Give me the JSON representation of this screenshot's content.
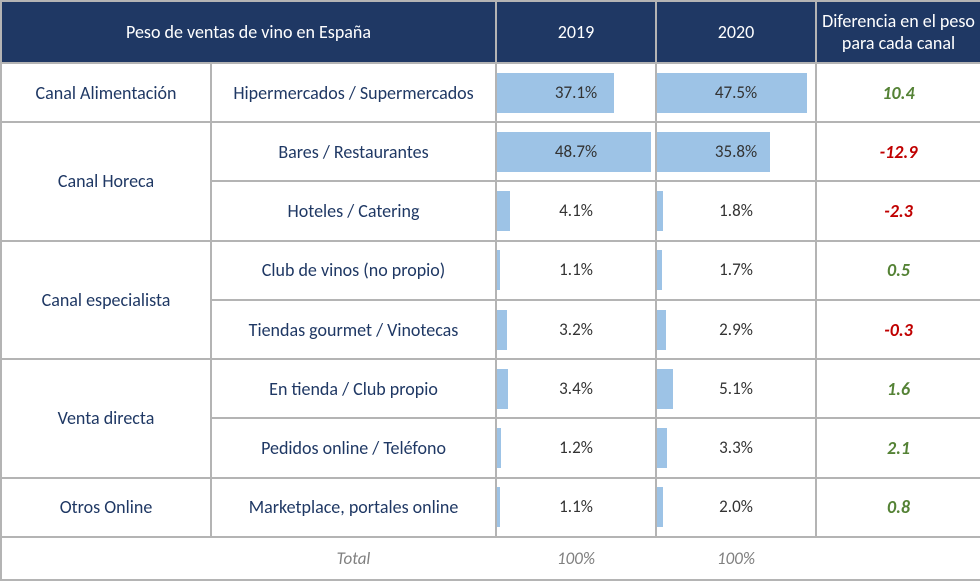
{
  "table": {
    "title": "Peso de ventas de vino en España",
    "header_bg": "#1f3864",
    "header_color": "#ffffff",
    "border_color": "#b4b4b4",
    "bar_color": "#9dc3e6",
    "text_blue": "#1f3864",
    "pos_color": "#548235",
    "neg_color": "#c00000",
    "columns": {
      "year1": "2019",
      "year2": "2020",
      "diff": "Diferencia en el peso para cada canal"
    },
    "bar_max": 50,
    "channels": [
      {
        "name": "Canal Alimentación",
        "subs": [
          {
            "label": "Hipermercados / Supermercados",
            "v2019": 37.1,
            "v2020": 47.5,
            "diff": 10.4
          }
        ]
      },
      {
        "name": "Canal Horeca",
        "subs": [
          {
            "label": "Bares / Restaurantes",
            "v2019": 48.7,
            "v2020": 35.8,
            "diff": -12.9
          },
          {
            "label": "Hoteles / Catering",
            "v2019": 4.1,
            "v2020": 1.8,
            "diff": -2.3
          }
        ]
      },
      {
        "name": "Canal especialista",
        "subs": [
          {
            "label": "Club de vinos (no propio)",
            "v2019": 1.1,
            "v2020": 1.7,
            "diff": 0.5
          },
          {
            "label": "Tiendas gourmet / Vinotecas",
            "v2019": 3.2,
            "v2020": 2.9,
            "diff": -0.3
          }
        ]
      },
      {
        "name": "Venta directa",
        "subs": [
          {
            "label": "En tienda / Club propio",
            "v2019": 3.4,
            "v2020": 5.1,
            "diff": 1.6
          },
          {
            "label": "Pedidos online / Teléfono",
            "v2019": 1.2,
            "v2020": 3.3,
            "diff": 2.1
          }
        ]
      },
      {
        "name": "Otros Online",
        "subs": [
          {
            "label": "Marketplace, portales online",
            "v2019": 1.1,
            "v2020": 2.0,
            "diff": 0.8
          }
        ]
      }
    ],
    "totals": {
      "label": "Total",
      "v2019": "100%",
      "v2020": "100%"
    }
  }
}
